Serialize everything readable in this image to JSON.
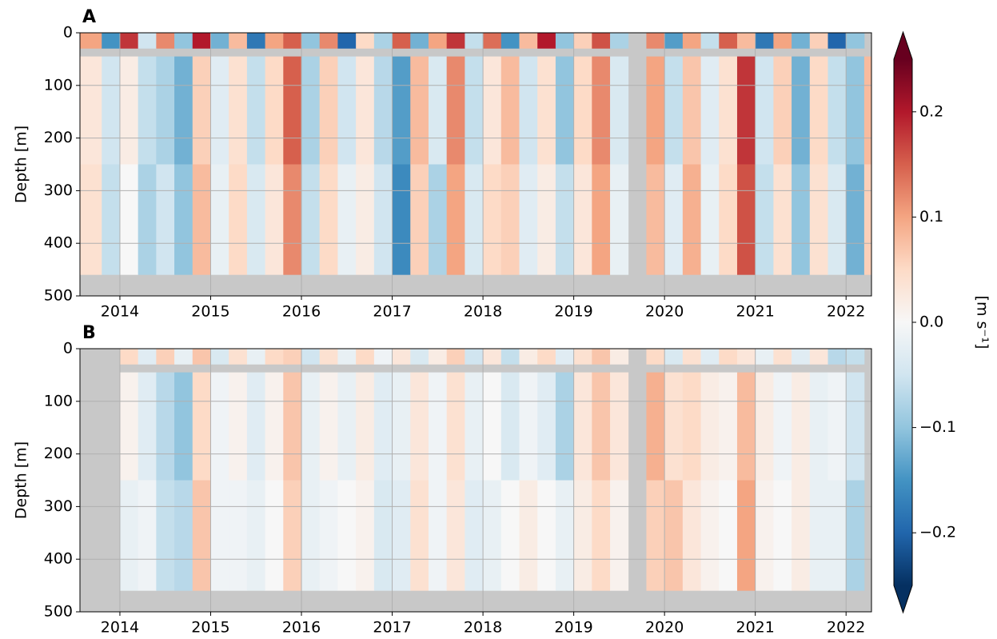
{
  "chart_data": [
    {
      "type": "heatmap",
      "panel_label": "A",
      "ylabel": "Depth [m]",
      "colormap": "RdBu_r",
      "missing_color": "#c8c8c8",
      "xlim": [
        2013.56,
        2022.28
      ],
      "ylim": [
        500,
        0
      ],
      "xticks": [
        2014,
        2015,
        2016,
        2017,
        2018,
        2019,
        2020,
        2021,
        2022
      ],
      "yticks": [
        0,
        100,
        200,
        300,
        400,
        500
      ],
      "grid": true,
      "x_edges": [
        2013.56,
        2013.8,
        2014.0,
        2014.2,
        2014.4,
        2014.6,
        2014.8,
        2015.0,
        2015.2,
        2015.4,
        2015.6,
        2015.8,
        2016.0,
        2016.2,
        2016.4,
        2016.6,
        2016.8,
        2017.0,
        2017.2,
        2017.4,
        2017.6,
        2017.8,
        2018.0,
        2018.2,
        2018.4,
        2018.6,
        2018.8,
        2019.0,
        2019.2,
        2019.4,
        2019.6,
        2019.8,
        2020.0,
        2020.2,
        2020.4,
        2020.6,
        2020.8,
        2021.0,
        2021.2,
        2021.4,
        2021.6,
        2021.8,
        2022.0,
        2022.2,
        2022.28
      ],
      "depth_bands": [
        [
          0,
          30
        ],
        [
          45,
          250
        ],
        [
          250,
          460
        ]
      ],
      "values": [
        [
          0.1,
          -0.15,
          0.18,
          -0.05,
          0.12,
          -0.1,
          0.2,
          -0.12,
          0.08,
          -0.18,
          0.1,
          0.15,
          -0.1,
          0.12,
          -0.2,
          0.05,
          -0.08,
          0.15,
          -0.12,
          0.1,
          0.18,
          -0.06,
          0.14,
          -0.15,
          0.08,
          0.2,
          -0.1,
          0.06,
          0.16,
          -0.08,
          null,
          0.12,
          -0.14,
          0.1,
          -0.06,
          0.15,
          0.08,
          -0.18,
          0.1,
          -0.12,
          0.06,
          -0.2,
          -0.1,
          null
        ],
        [
          0.03,
          -0.05,
          0.02,
          -0.06,
          -0.08,
          -0.12,
          0.06,
          -0.03,
          0.04,
          -0.06,
          0.05,
          0.15,
          -0.08,
          0.06,
          -0.05,
          0.03,
          -0.07,
          -0.14,
          0.08,
          -0.04,
          0.12,
          -0.06,
          0.03,
          0.08,
          -0.05,
          0.04,
          -0.1,
          0.05,
          0.12,
          -0.04,
          null,
          0.1,
          -0.06,
          0.07,
          -0.03,
          0.04,
          0.18,
          -0.05,
          0.06,
          -0.12,
          0.05,
          -0.06,
          -0.1,
          0.08
        ],
        [
          0.04,
          -0.06,
          0.0,
          -0.08,
          -0.05,
          -0.1,
          0.08,
          -0.02,
          0.05,
          -0.04,
          0.03,
          0.12,
          -0.06,
          0.05,
          -0.02,
          0.02,
          -0.05,
          -0.16,
          0.06,
          -0.08,
          0.1,
          -0.04,
          0.05,
          0.06,
          -0.03,
          0.02,
          -0.06,
          0.03,
          0.1,
          -0.02,
          null,
          0.08,
          -0.03,
          0.09,
          -0.02,
          0.05,
          0.16,
          -0.06,
          0.04,
          -0.1,
          0.04,
          -0.04,
          -0.12,
          0.06
        ]
      ]
    },
    {
      "type": "heatmap",
      "panel_label": "B",
      "ylabel": "Depth [m]",
      "colormap": "RdBu_r",
      "missing_color": "#c8c8c8",
      "xlim": [
        2013.56,
        2022.28
      ],
      "ylim": [
        500,
        0
      ],
      "xticks": [
        2014,
        2015,
        2016,
        2017,
        2018,
        2019,
        2020,
        2021,
        2022
      ],
      "yticks": [
        0,
        100,
        200,
        300,
        400,
        500
      ],
      "grid": true,
      "x_edges": [
        2013.56,
        2013.8,
        2014.0,
        2014.2,
        2014.4,
        2014.6,
        2014.8,
        2015.0,
        2015.2,
        2015.4,
        2015.6,
        2015.8,
        2016.0,
        2016.2,
        2016.4,
        2016.6,
        2016.8,
        2017.0,
        2017.2,
        2017.4,
        2017.6,
        2017.8,
        2018.0,
        2018.2,
        2018.4,
        2018.6,
        2018.8,
        2019.0,
        2019.2,
        2019.4,
        2019.6,
        2019.8,
        2020.0,
        2020.2,
        2020.4,
        2020.6,
        2020.8,
        2021.0,
        2021.2,
        2021.4,
        2021.6,
        2021.8,
        2022.0,
        2022.2,
        2022.28
      ],
      "depth_bands": [
        [
          0,
          30
        ],
        [
          45,
          250
        ],
        [
          250,
          460
        ]
      ],
      "values": [
        [
          null,
          null,
          0.05,
          -0.03,
          0.06,
          -0.02,
          0.07,
          -0.04,
          0.04,
          -0.02,
          0.05,
          0.06,
          -0.05,
          0.04,
          -0.02,
          0.05,
          -0.01,
          0.03,
          -0.04,
          0.02,
          0.06,
          -0.05,
          0.03,
          -0.06,
          0.02,
          0.05,
          -0.03,
          0.04,
          0.07,
          0.02,
          null,
          0.05,
          -0.04,
          0.04,
          -0.03,
          0.05,
          0.03,
          -0.02,
          0.04,
          -0.03,
          0.03,
          -0.07,
          -0.06,
          null
        ],
        [
          null,
          null,
          0.01,
          -0.03,
          -0.07,
          -0.1,
          0.05,
          -0.01,
          0.01,
          -0.03,
          0.01,
          0.07,
          -0.02,
          0.01,
          -0.02,
          0.02,
          -0.03,
          -0.02,
          0.03,
          -0.01,
          0.04,
          -0.02,
          0.0,
          -0.04,
          -0.01,
          -0.03,
          -0.08,
          0.03,
          0.07,
          0.03,
          null,
          0.09,
          0.04,
          0.05,
          0.02,
          0.01,
          0.08,
          0.02,
          -0.01,
          0.02,
          -0.02,
          -0.01,
          -0.05,
          null
        ],
        [
          null,
          null,
          -0.02,
          -0.01,
          -0.06,
          -0.07,
          0.07,
          -0.01,
          -0.01,
          -0.02,
          0.0,
          0.06,
          -0.02,
          -0.01,
          0.0,
          0.01,
          -0.04,
          -0.03,
          0.04,
          -0.01,
          0.03,
          -0.03,
          -0.02,
          0.0,
          0.02,
          0.0,
          -0.02,
          0.02,
          0.05,
          0.01,
          null,
          0.06,
          0.07,
          0.03,
          0.01,
          0.0,
          0.1,
          0.01,
          0.0,
          0.02,
          -0.02,
          -0.02,
          -0.08,
          null
        ]
      ]
    },
    {
      "type": "colorbar",
      "label": "[m s⁻¹]",
      "colormap": "RdBu_r",
      "lim": [
        -0.25,
        0.25
      ],
      "extend": "both",
      "ticks": [
        {
          "value": -0.2,
          "label": "−0.2"
        },
        {
          "value": -0.1,
          "label": "−0.1"
        },
        {
          "value": 0.0,
          "label": "0.0"
        },
        0.1,
        0.2
      ]
    }
  ]
}
